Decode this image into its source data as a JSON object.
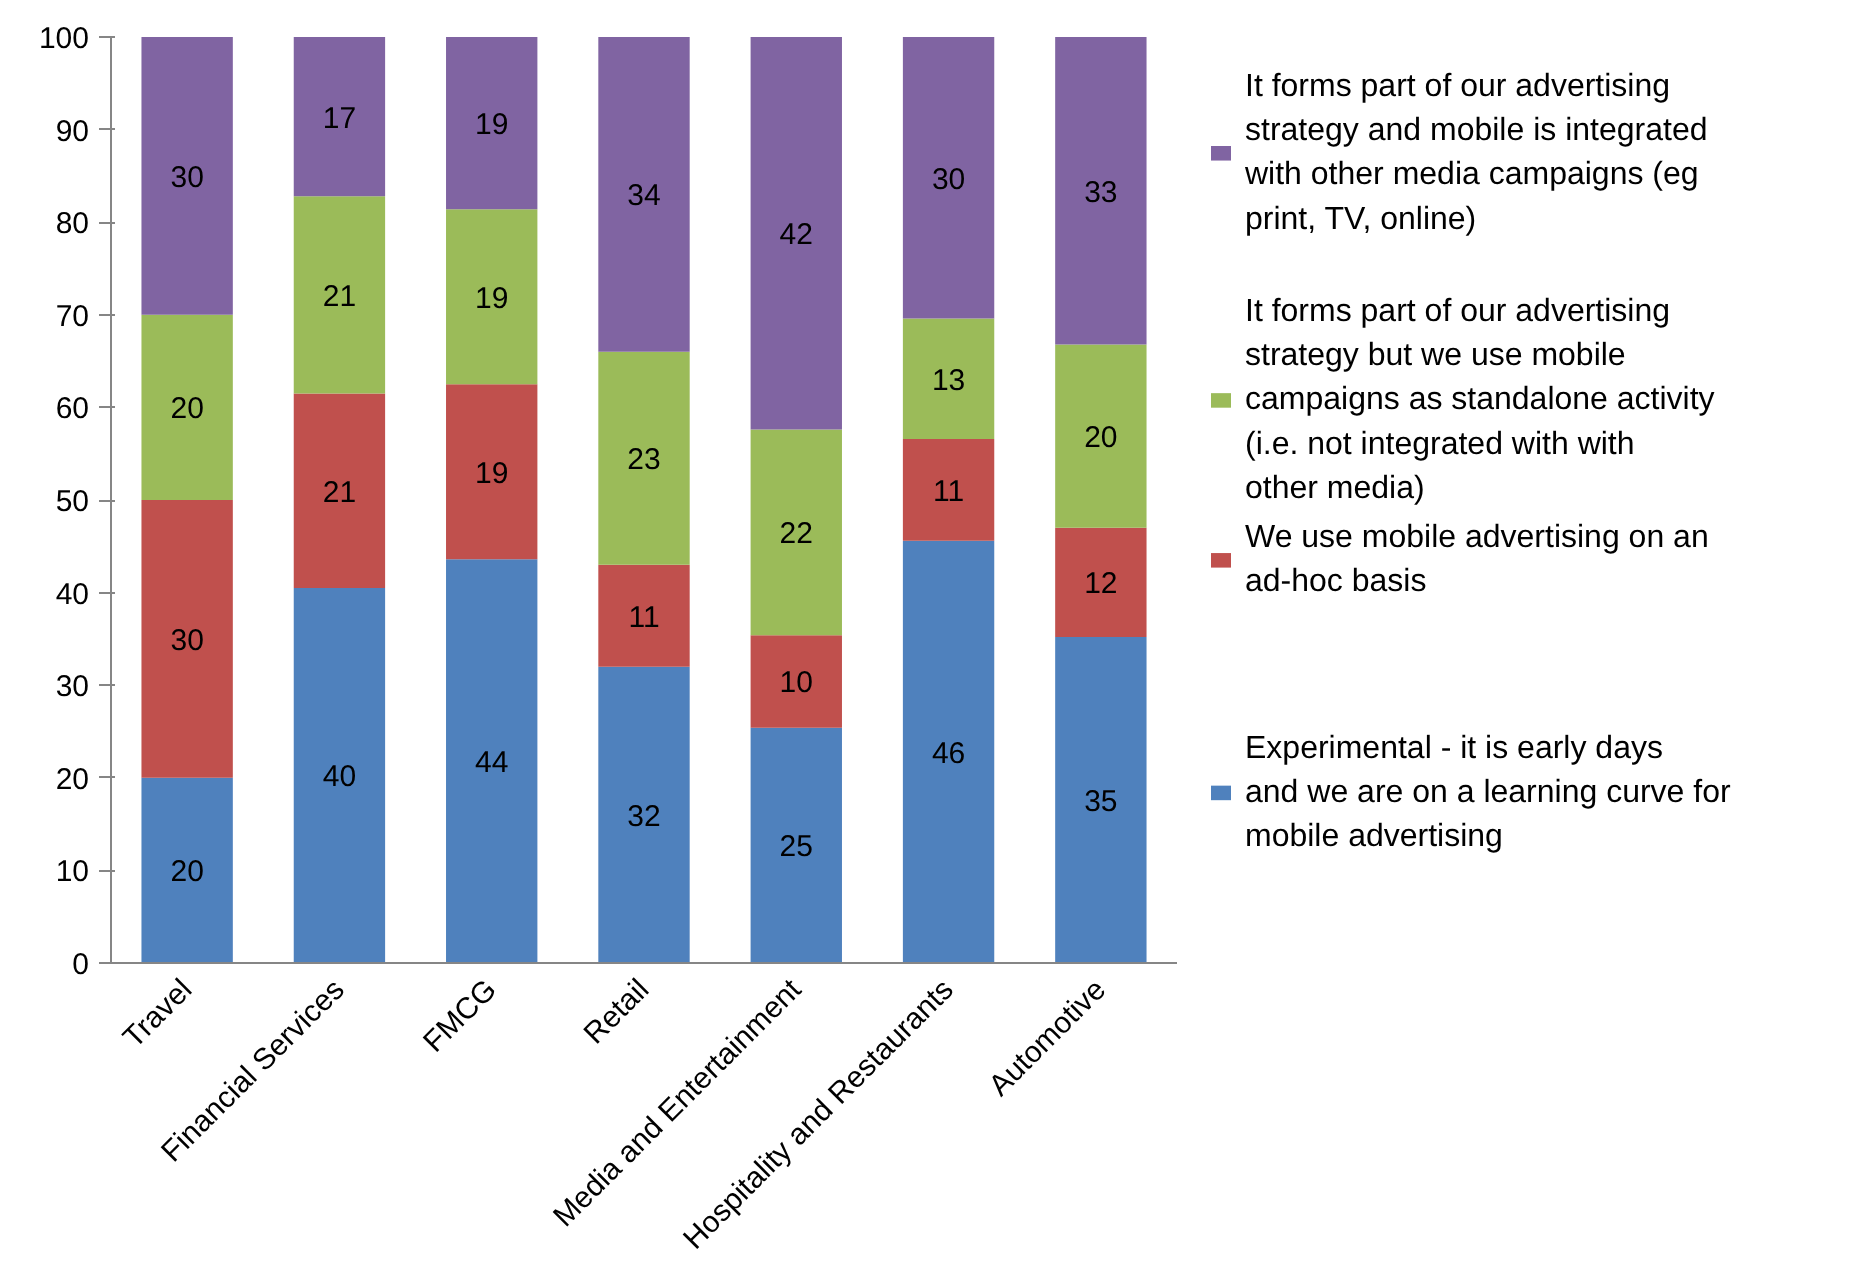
{
  "chart_data": {
    "type": "bar",
    "stacked": true,
    "categories": [
      "Travel",
      "Financial Services",
      "FMCG",
      "Retail",
      "Media and Entertainment",
      "Hospitality and Restaurants",
      "Automotive"
    ],
    "series": [
      {
        "name": "Experimental - it is early days and we are on a learning curve for mobile advertising",
        "color": "#4f81bd",
        "values": [
          20,
          40.5,
          43.6,
          32,
          25.4,
          45.6,
          35.2
        ],
        "value_labels": [
          "20",
          "40",
          "44",
          "32",
          "25",
          "46",
          "35"
        ]
      },
      {
        "name": "We use mobile advertising on an ad-hoc basis",
        "color": "#c0504d",
        "values": [
          30,
          21,
          18.9,
          11,
          10,
          11,
          11.8
        ],
        "value_labels": [
          "30",
          "21",
          "19",
          "11",
          "10",
          "11",
          "12"
        ]
      },
      {
        "name": "It forms part of our advertising strategy but we use mobile campaigns as standalone activity (i.e. not integrated with with other media)",
        "color": "#9bbb59",
        "values": [
          20,
          21.3,
          18.9,
          23,
          22.2,
          13,
          19.8
        ],
        "value_labels": [
          "20",
          "21",
          "19",
          "23",
          "22",
          "13",
          "20"
        ]
      },
      {
        "name": "It forms part of our advertising strategy and mobile is integrated with other media campaigns (eg print, TV, online)",
        "color": "#8064a2",
        "values": [
          30,
          17.2,
          18.6,
          34,
          42.4,
          30.4,
          33.2
        ],
        "value_labels": [
          "30",
          "17",
          "19",
          "34",
          "42",
          "30",
          "33"
        ]
      }
    ],
    "ylim": [
      0,
      100
    ],
    "yticks": [
      0,
      10,
      20,
      30,
      40,
      50,
      60,
      70,
      80,
      90,
      100
    ],
    "grid": false,
    "legend": "right"
  }
}
